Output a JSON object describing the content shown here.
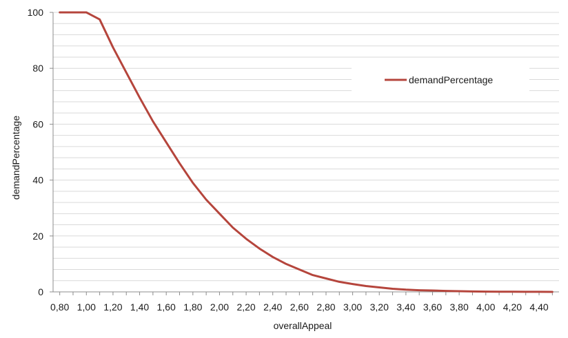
{
  "chart_data": {
    "type": "line",
    "title": "",
    "xlabel": "overallAppeal",
    "ylabel": "demandPercentage",
    "xlim": [
      0.75,
      4.55
    ],
    "ylim": [
      0,
      100
    ],
    "x_ticks": [
      "0,80",
      "1,00",
      "1,20",
      "1,40",
      "1,60",
      "1,80",
      "2,00",
      "2,20",
      "2,40",
      "2,60",
      "2,80",
      "3,00",
      "3,20",
      "3,40",
      "3,60",
      "3,80",
      "4,00",
      "4,20",
      "4,40"
    ],
    "y_ticks": [
      "0",
      "20",
      "40",
      "60",
      "80",
      "100"
    ],
    "grid": "horizontal minor every 4",
    "legend_position": "top-right",
    "series": [
      {
        "name": "demandPercentage",
        "color": "#b5453c",
        "x": [
          0.8,
          0.9,
          1.0,
          1.1,
          1.2,
          1.3,
          1.4,
          1.5,
          1.6,
          1.7,
          1.8,
          1.9,
          2.0,
          2.1,
          2.2,
          2.3,
          2.4,
          2.5,
          2.6,
          2.7,
          2.8,
          2.9,
          3.0,
          3.1,
          3.2,
          3.3,
          3.4,
          3.5,
          3.6,
          3.7,
          3.8,
          3.9,
          4.0,
          4.1,
          4.2,
          4.3,
          4.4,
          4.5
        ],
        "values": [
          100,
          100,
          100,
          97.5,
          87.5,
          78.5,
          69.5,
          61,
          53.5,
          46,
          39,
          33,
          28,
          23,
          19,
          15.5,
          12.5,
          10,
          8,
          6,
          4.8,
          3.6,
          2.8,
          2.1,
          1.6,
          1.1,
          0.8,
          0.6,
          0.5,
          0.35,
          0.25,
          0.15,
          0.1,
          0.08,
          0.05,
          0.03,
          0.02,
          0.01
        ]
      }
    ]
  }
}
